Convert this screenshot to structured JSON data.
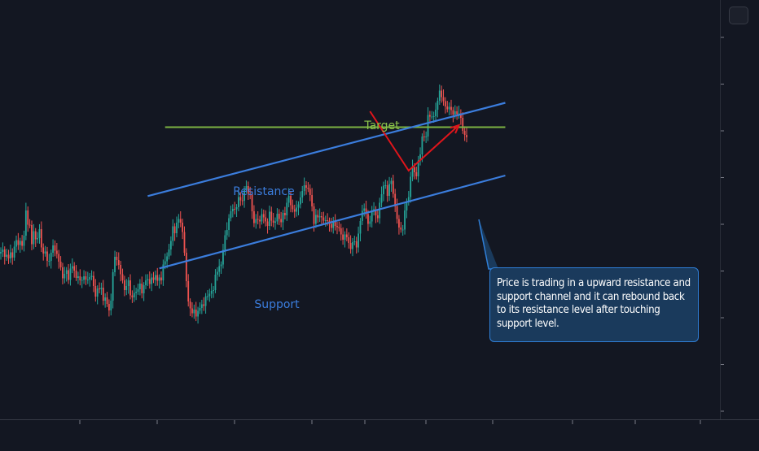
{
  "chart_data": {
    "type": "candlestick",
    "title": "",
    "xlabel": "",
    "ylabel": "",
    "ylim": [
      0,
      100
    ],
    "grid": false,
    "colors": {
      "background": "#131722",
      "up": "#26a69a",
      "down": "#ef5350",
      "channel": "#3b7ddd",
      "target": "#7cb342",
      "projection": "#e0151b",
      "callout_fill": "#1a3a5c",
      "callout_border": "#2f7fd8"
    },
    "closes": [
      38.0,
      38.6,
      36.8,
      37.3,
      36.4,
      37.9,
      36.6,
      39.3,
      40.9,
      39.7,
      40.7,
      39.5,
      42.0,
      48.2,
      44.7,
      44.6,
      39.9,
      43.1,
      41.1,
      41.4,
      43.6,
      39.1,
      37.6,
      38.1,
      35.8,
      35.8,
      37.8,
      39.6,
      38.3,
      37.5,
      35.6,
      34.2,
      31.5,
      32.6,
      33.5,
      31.1,
      33.9,
      34.5,
      33.4,
      31.6,
      32.0,
      31.0,
      31.1,
      32.0,
      31.2,
      31.2,
      31.8,
      32.1,
      29.6,
      27.0,
      29.0,
      28.8,
      29.2,
      26.0,
      26.8,
      25.2,
      23.6,
      26.0,
      33.0,
      36.8,
      36.0,
      34.8,
      32.5,
      31.0,
      28.6,
      29.6,
      31.0,
      27.3,
      26.8,
      27.9,
      28.2,
      28.8,
      30.2,
      27.8,
      29.8,
      31.0,
      31.3,
      30.1,
      31.7,
      31.1,
      32.3,
      30.9,
      31.7,
      31.0,
      34.9,
      35.7,
      36.9,
      38.6,
      40.7,
      44.3,
      42.6,
      45.2,
      46.1,
      45.2,
      42.9,
      37.8,
      30.8,
      25.8,
      24.1,
      22.9,
      23.8,
      22.1,
      23.5,
      24.2,
      25.1,
      24.7,
      27.1,
      27.1,
      27.7,
      28.4,
      28.6,
      32.4,
      33.1,
      34.5,
      34.9,
      38.5,
      42.1,
      43.4,
      46.3,
      48.0,
      48.6,
      48.5,
      49.0,
      51.5,
      50.7,
      50.6,
      53.2,
      54.2,
      52.3,
      52.2,
      48.0,
      45.1,
      46.1,
      45.9,
      45.5,
      47.3,
      46.5,
      45.5,
      44.4,
      47.9,
      45.7,
      45.2,
      45.5,
      47.4,
      46.1,
      45.3,
      47.6,
      47.0,
      50.1,
      51.8,
      49.5,
      48.5,
      47.9,
      48.9,
      49.7,
      51.4,
      53.0,
      54.4,
      53.8,
      53.5,
      52.0,
      49.2,
      44.9,
      47.1,
      46.5,
      46.8,
      46.5,
      45.7,
      45.8,
      45.7,
      44.9,
      43.9,
      45.4,
      44.4,
      44.1,
      43.8,
      42.3,
      41.0,
      42.3,
      41.6,
      40.2,
      38.7,
      40.4,
      40.6,
      39.1,
      42.5,
      45.6,
      48.1,
      48.7,
      47.3,
      44.9,
      45.5,
      48.2,
      48.5,
      47.0,
      46.3,
      50.1,
      52.2,
      54.3,
      54.4,
      51.8,
      54.7,
      55.5,
      52.3,
      49.2,
      46.1,
      44.0,
      43.5,
      43.5,
      48.2,
      50.4,
      51.5,
      56.5,
      58.8,
      57.6,
      56.6,
      60.5,
      62.0,
      66.4,
      66.2,
      66.4,
      71.7,
      71.3,
      71.3,
      71.4,
      73.0,
      75.2,
      77.7,
      76.1,
      75.1,
      73.8,
      73.1,
      73.7,
      72.9,
      71.8,
      72.6,
      71.9,
      72.1,
      71.0,
      67.8,
      66.8,
      66.2
    ],
    "channel": {
      "resistance": {
        "start": [
          0,
          42.3
        ],
        "end": [
          261,
          74.7
        ]
      },
      "support": {
        "start": [
          4,
          24.7
        ],
        "end": [
          261,
          56.8
        ]
      }
    },
    "target_level": 68.7,
    "target_span": [
      9,
      261
    ],
    "projection": [
      [
        191,
        72.6
      ],
      [
        211,
        58.0
      ],
      [
        237,
        69.2
      ]
    ],
    "annotations": {
      "target": "Target",
      "resistance": "Resistance",
      "support": "Support",
      "callout": "Price is trading in a upward resistance and support channel and it can rebound back to its resistance level after touching support level."
    }
  }
}
